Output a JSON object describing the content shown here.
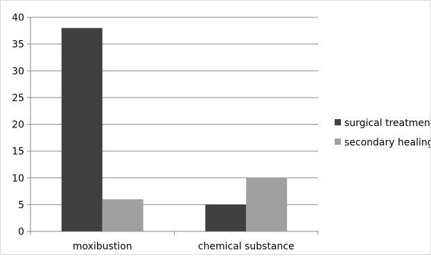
{
  "chart_data": {
    "type": "bar",
    "categories": [
      "moxibustion",
      "chemical substance"
    ],
    "series": [
      {
        "name": "surgical treatment",
        "values": [
          38,
          5
        ],
        "color": "#404040"
      },
      {
        "name": "secondary healing",
        "values": [
          6,
          10
        ],
        "color": "#a0a0a0"
      }
    ],
    "ylim": [
      0,
      40
    ],
    "yticks": [
      0,
      5,
      10,
      15,
      20,
      25,
      30,
      35,
      40
    ],
    "grid": true,
    "legend_position": "right",
    "title": "",
    "xlabel": "",
    "ylabel": ""
  }
}
